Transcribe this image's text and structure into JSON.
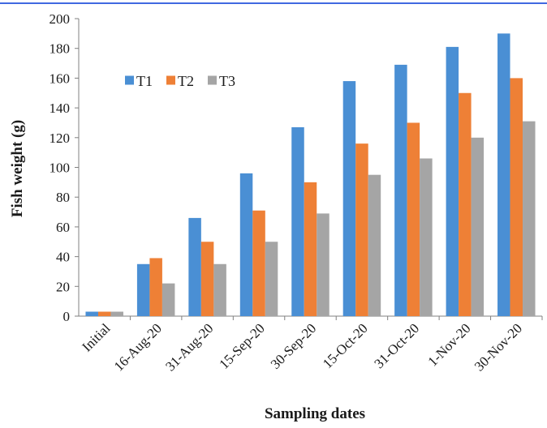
{
  "chart_data": {
    "type": "bar",
    "title": "",
    "xlabel": "Sampling dates",
    "ylabel": "Fish weight (g)",
    "categories": [
      "Initial",
      "16-Aug-20",
      "31-Aug-20",
      "15-Sep-20",
      "30-Sep-20",
      "15-Oct-20",
      "31-Oct-20",
      "1-Nov-20",
      "30-Nov-20"
    ],
    "series": [
      {
        "name": "T1",
        "color": "#4a8fd4",
        "values": [
          3,
          35,
          66,
          96,
          127,
          158,
          169,
          181,
          190
        ]
      },
      {
        "name": "T2",
        "color": "#ee8036",
        "values": [
          3,
          39,
          50,
          71,
          90,
          116,
          130,
          150,
          160
        ]
      },
      {
        "name": "T3",
        "color": "#a5a5a5",
        "values": [
          3,
          22,
          35,
          50,
          69,
          95,
          106,
          120,
          131
        ]
      }
    ],
    "ylim": [
      0,
      200
    ],
    "yticks": [
      0,
      20,
      40,
      60,
      80,
      100,
      120,
      140,
      160,
      180,
      200
    ],
    "grid": false,
    "legend_position": "upper-left",
    "top_rule_color": "#4169e1"
  }
}
